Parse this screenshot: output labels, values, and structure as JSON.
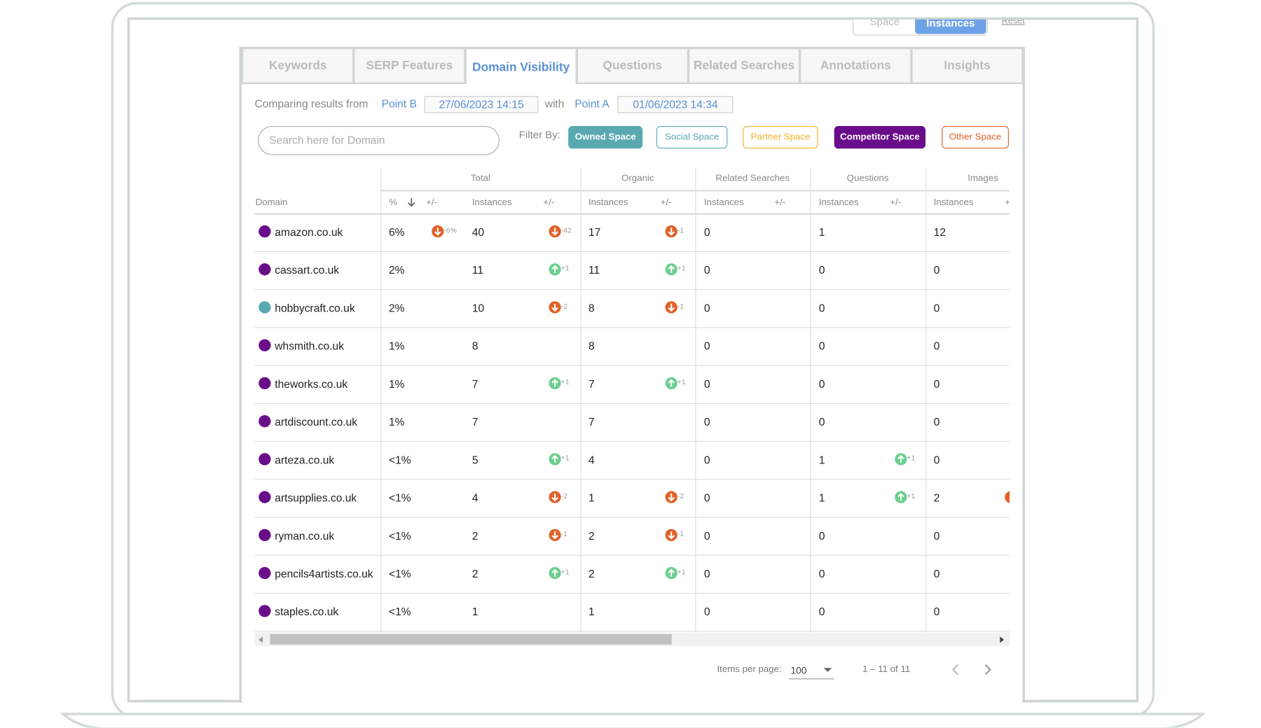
{
  "toolbar": {
    "toggle": [
      "Space",
      "Instances"
    ],
    "reset": "Reset"
  },
  "tabs": [
    "Keywords",
    "SERP Features",
    "Domain Visibility",
    "Questions",
    "Related Searches",
    "Annotations",
    "Insights"
  ],
  "active_tab": 2,
  "comparison": {
    "label": "Comparing results from",
    "point_b": "Point B",
    "date_b": "27/06/2023 14:15",
    "with": "with",
    "point_a": "Point A",
    "date_a": "01/06/2023 14:34"
  },
  "search_placeholder": "Search here for Domain",
  "filter": {
    "label": "Filter By:",
    "buttons": [
      {
        "label": "Owned Space",
        "color": "#5aa9b0",
        "filled": true
      },
      {
        "label": "Social Space",
        "color": "#5aa9b0",
        "filled": false
      },
      {
        "label": "Partner Space",
        "color": "#f0b429",
        "filled": false
      },
      {
        "label": "Competitor Space",
        "color": "#6a0d8a",
        "filled": true
      },
      {
        "label": "Other Space",
        "color": "#e0622a",
        "filled": false
      }
    ]
  },
  "table": {
    "groups": [
      "Total",
      "Organic",
      "Related Searches",
      "Questions",
      "Images"
    ],
    "columns": [
      "Domain",
      "%",
      "+/-",
      "Instances",
      "+/-",
      "Instances",
      "+/-",
      "Instances",
      "+/-",
      "Instances",
      "+/-",
      "Instances",
      "+"
    ],
    "rows": [
      {
        "color": "#6a0d8a",
        "cells": [
          "amazon.co.uk",
          "6%",
          "-6%",
          40,
          "-42",
          17,
          "-1",
          0,
          null,
          1,
          null,
          12,
          null
        ]
      },
      {
        "color": "#6a0d8a",
        "cells": [
          "cassart.co.uk",
          "2%",
          null,
          11,
          "+1",
          11,
          "+1",
          0,
          null,
          0,
          null,
          0,
          null
        ]
      },
      {
        "color": "#5aa9b0",
        "cells": [
          "hobbycraft.co.uk",
          "2%",
          null,
          10,
          "-2",
          8,
          "-1",
          0,
          null,
          0,
          null,
          0,
          null
        ]
      },
      {
        "color": "#6a0d8a",
        "cells": [
          "whsmith.co.uk",
          "1%",
          null,
          8,
          null,
          8,
          null,
          0,
          null,
          0,
          null,
          0,
          null
        ]
      },
      {
        "color": "#6a0d8a",
        "cells": [
          "theworks.co.uk",
          "1%",
          null,
          7,
          "+1",
          7,
          "+1",
          0,
          null,
          0,
          null,
          0,
          null
        ]
      },
      {
        "color": "#6a0d8a",
        "cells": [
          "artdiscount.co.uk",
          "1%",
          null,
          7,
          null,
          7,
          null,
          0,
          null,
          0,
          null,
          0,
          null
        ]
      },
      {
        "color": "#6a0d8a",
        "cells": [
          "arteza.co.uk",
          "<1%",
          null,
          5,
          "+1",
          4,
          null,
          0,
          null,
          1,
          "+1",
          0,
          null
        ]
      },
      {
        "color": "#6a0d8a",
        "cells": [
          "artsupplies.co.uk",
          "<1%",
          null,
          4,
          "-2",
          1,
          "-2",
          0,
          null,
          1,
          "+1",
          2,
          null
        ]
      },
      {
        "color": "#6a0d8a",
        "cells": [
          "ryman.co.uk",
          "<1%",
          null,
          2,
          "-1",
          2,
          "-1",
          0,
          null,
          0,
          null,
          0,
          null
        ]
      },
      {
        "color": "#6a0d8a",
        "cells": [
          "pencils4artists.co.uk",
          "<1%",
          null,
          2,
          "+1",
          2,
          "+1",
          0,
          null,
          0,
          null,
          0,
          null
        ]
      },
      {
        "color": "#6a0d8a",
        "cells": [
          "staples.co.uk",
          "<1%",
          null,
          1,
          null,
          1,
          null,
          0,
          null,
          0,
          null,
          0,
          null
        ]
      }
    ]
  },
  "pagination": {
    "label": "Items per page:",
    "page_size": 100,
    "range": "1 – 11 of 11"
  }
}
